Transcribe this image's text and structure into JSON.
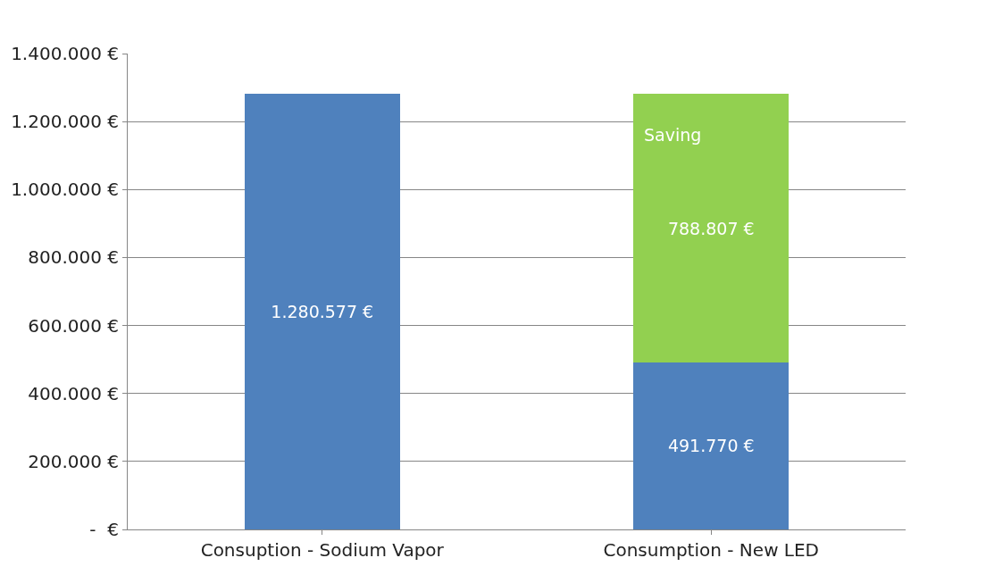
{
  "chart_data": {
    "type": "bar",
    "stacked": true,
    "categories": [
      "Consuption - Sodium Vapor",
      "Consumption - New LED"
    ],
    "series": [
      {
        "color": "#4f81bd",
        "values": [
          1280577,
          491770
        ],
        "value_labels": [
          "1.280.577 €",
          "491.770 €"
        ]
      },
      {
        "name": "Saving",
        "color": "#92d050",
        "values": [
          null,
          788807
        ],
        "value_labels": [
          null,
          "788.807 €"
        ]
      }
    ],
    "ylim": [
      0,
      1400000
    ],
    "yticks": [
      {
        "value": 0,
        "label": "-  €"
      },
      {
        "value": 200000,
        "label": "200.000 €"
      },
      {
        "value": 400000,
        "label": "400.000 €"
      },
      {
        "value": 600000,
        "label": "600.000 €"
      },
      {
        "value": 800000,
        "label": "800.000 €"
      },
      {
        "value": 1000000,
        "label": "1.000.000 €"
      },
      {
        "value": 1200000,
        "label": "1.200.000 €"
      },
      {
        "value": 1400000,
        "label": "1.400.000 €"
      }
    ],
    "grid": "y",
    "legend": false
  }
}
